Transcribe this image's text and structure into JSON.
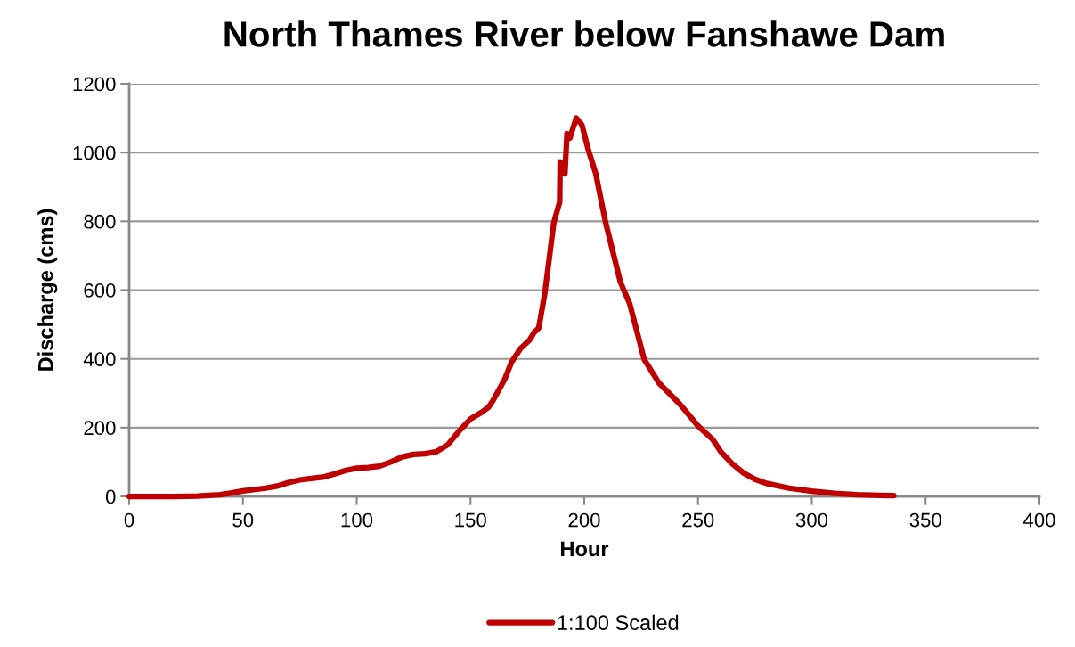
{
  "chart_data": {
    "type": "line",
    "title": "North Thames River below Fanshawe Dam",
    "xlabel": "Hour",
    "ylabel": "Discharge (cms)",
    "x": [
      0,
      10,
      20,
      30,
      40,
      45,
      50,
      60,
      65,
      70,
      75,
      80,
      85,
      90,
      95,
      100,
      105,
      110,
      115,
      120,
      125,
      130,
      135,
      140,
      145,
      150,
      155,
      158,
      160,
      165,
      168,
      172,
      176,
      178,
      180,
      182.6,
      184,
      186.6,
      189.2,
      189.4,
      191.5,
      192.4,
      193.7,
      195,
      196.5,
      199,
      201.6,
      205,
      209.4,
      215.9,
      220,
      226.3,
      232.9,
      241.9,
      245,
      250,
      256.4,
      260,
      265,
      270,
      275,
      280,
      290,
      300,
      310,
      320,
      330,
      336
    ],
    "series": [
      {
        "name": "1:100 Scaled",
        "color": "#c00000",
        "values": [
          0,
          0,
          0,
          1,
          5,
          10,
          16,
          24,
          30,
          40,
          48,
          52,
          56,
          65,
          75,
          82,
          84,
          88,
          100,
          115,
          122,
          124,
          130,
          150,
          190,
          225,
          245,
          260,
          280,
          340,
          390,
          430,
          455,
          477,
          490,
          588,
          660,
          796,
          856,
          973,
          938,
          1055,
          1042,
          1070,
          1100,
          1080,
          1012,
          940,
          796,
          623,
          560,
          399,
          329,
          269,
          245,
          205,
          166,
          130,
          95,
          68,
          50,
          38,
          24,
          15,
          9,
          5,
          3,
          2
        ]
      }
    ],
    "xlim": [
      0,
      400
    ],
    "xticks": [
      0,
      50,
      100,
      150,
      200,
      250,
      300,
      350,
      400
    ],
    "ylim": [
      0,
      1200
    ],
    "yticks": [
      0,
      200,
      400,
      600,
      800,
      1000,
      1200
    ],
    "grid": "y",
    "legend": "bottom",
    "marker": "none",
    "line_style": "solid"
  }
}
